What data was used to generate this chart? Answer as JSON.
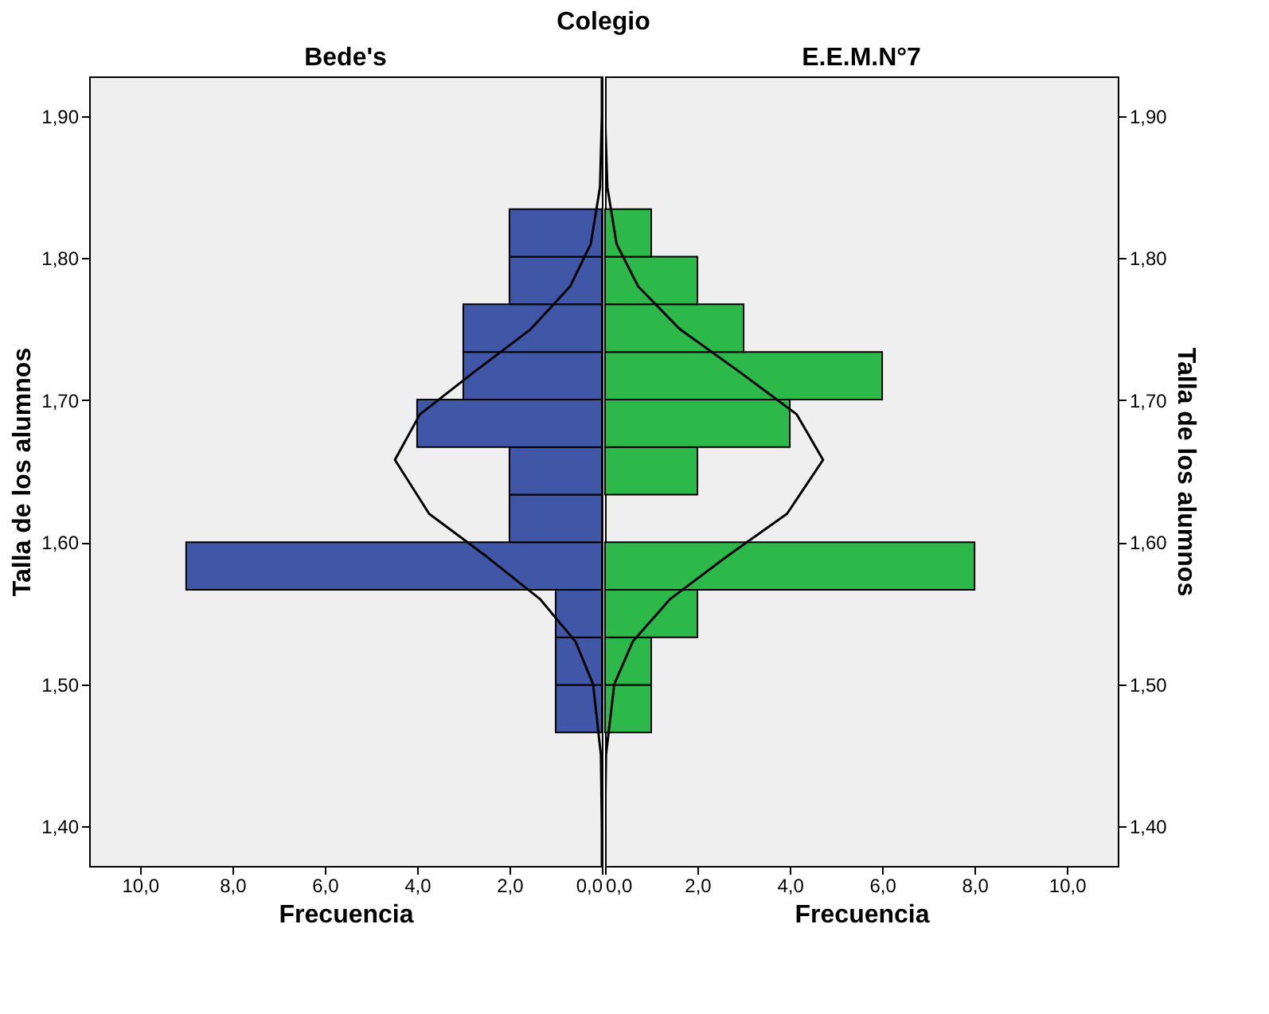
{
  "chart_data": [
    {
      "type": "histogram",
      "orientation": "horizontal",
      "title": "Colegio",
      "subtitle": "Bede's",
      "xlabel": "Frecuencia",
      "ylabel": "Talla de los alumnos",
      "color": "#3f57a6",
      "bins": [
        1.466,
        1.4995,
        1.533,
        1.5665,
        1.6,
        1.6335,
        1.667,
        1.7005,
        1.734,
        1.7675,
        1.801,
        1.8345
      ],
      "values": [
        1,
        1,
        1,
        9,
        2,
        2,
        4,
        3,
        3,
        2,
        2
      ],
      "series": [
        {
          "type": "line",
          "color": "#000000",
          "x": [
            1.37,
            1.4,
            1.45,
            1.5,
            1.53,
            1.56,
            1.59,
            1.62,
            1.658,
            1.69,
            1.72,
            1.75,
            1.78,
            1.81,
            1.85,
            1.9,
            1.93
          ],
          "values": [
            0,
            0,
            0.02,
            0.19,
            0.57,
            1.34,
            2.5,
            3.74,
            4.48,
            3.94,
            2.76,
            1.54,
            0.69,
            0.24,
            0.04,
            0,
            0
          ]
        }
      ],
      "xlim": [
        11.1,
        0
      ],
      "xticks": [
        {
          "value": 10,
          "label": "10,0"
        },
        {
          "value": 8,
          "label": "8,0"
        },
        {
          "value": 6,
          "label": "6,0"
        },
        {
          "value": 4,
          "label": "4,0"
        },
        {
          "value": 2,
          "label": "2,0"
        },
        {
          "value": 0,
          "label": "0,0"
        }
      ],
      "ylim": [
        1.372,
        1.928
      ],
      "yticks": [
        {
          "value": 1.4,
          "label": "1,40"
        },
        {
          "value": 1.5,
          "label": "1,50"
        },
        {
          "value": 1.6,
          "label": "1,60"
        },
        {
          "value": 1.7,
          "label": "1,70"
        },
        {
          "value": 1.8,
          "label": "1,80"
        },
        {
          "value": 1.9,
          "label": "1,90"
        }
      ]
    },
    {
      "type": "histogram",
      "orientation": "horizontal",
      "subtitle": "E.E.M.N°7",
      "xlabel": "Frecuencia",
      "ylabel": "Talla de los alumnos",
      "color": "#2db84a",
      "bins": [
        1.466,
        1.4995,
        1.533,
        1.5665,
        1.6,
        1.6335,
        1.667,
        1.7005,
        1.734,
        1.7675,
        1.801,
        1.8345
      ],
      "values": [
        1,
        1,
        2,
        8,
        0,
        2,
        4,
        6,
        3,
        2,
        1
      ],
      "series": [
        {
          "type": "line",
          "color": "#000000",
          "x": [
            1.37,
            1.4,
            1.45,
            1.5,
            1.53,
            1.56,
            1.59,
            1.62,
            1.658,
            1.69,
            1.72,
            1.75,
            1.78,
            1.81,
            1.85,
            1.9,
            1.93
          ],
          "values": [
            0,
            0,
            0.02,
            0.2,
            0.6,
            1.41,
            2.64,
            3.94,
            4.72,
            4.15,
            2.91,
            1.62,
            0.72,
            0.25,
            0.05,
            0,
            0
          ]
        }
      ],
      "xlim": [
        0,
        11.1
      ],
      "xticks": [
        {
          "value": 0,
          "label": "0,0"
        },
        {
          "value": 2,
          "label": "2,0"
        },
        {
          "value": 4,
          "label": "4,0"
        },
        {
          "value": 6,
          "label": "6,0"
        },
        {
          "value": 8,
          "label": "8,0"
        },
        {
          "value": 10,
          "label": "10,0"
        }
      ],
      "ylim": [
        1.372,
        1.928
      ],
      "yticks": [
        {
          "value": 1.4,
          "label": "1,40"
        },
        {
          "value": 1.5,
          "label": "1,50"
        },
        {
          "value": 1.6,
          "label": "1,60"
        },
        {
          "value": 1.7,
          "label": "1,70"
        },
        {
          "value": 1.8,
          "label": "1,80"
        },
        {
          "value": 1.9,
          "label": "1,90"
        }
      ]
    }
  ]
}
